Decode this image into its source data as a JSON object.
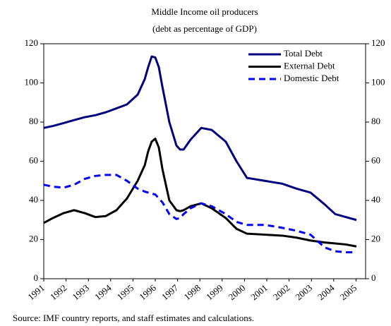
{
  "chart_data": {
    "type": "line",
    "title": "Middle Income oil producers",
    "subtitle": "(debt as percentage of GDP)",
    "source": "Source: IMF country reports, and staff estimates and calculations.",
    "x": [
      1991,
      1991.41,
      1991.89,
      1992.36,
      1992.84,
      1993.31,
      1993.78,
      1994.26,
      1994.73,
      1995.21,
      1995.53,
      1995.68,
      1995.84,
      1996.0,
      1996.16,
      1996.32,
      1996.63,
      1996.95,
      1997.11,
      1997.27,
      1997.58,
      1998.06,
      1998.53,
      1999.16,
      1999.64,
      2000.11,
      2000.91,
      2001.7,
      2002.33,
      2002.96,
      2003.59,
      2004.07,
      2004.54,
      2005.02
    ],
    "series": [
      {
        "name": "Total Debt",
        "color": "#000080",
        "dash": false,
        "values": [
          77,
          78,
          79.5,
          81,
          82.5,
          83.5,
          85,
          87,
          89,
          94,
          102,
          108,
          113.5,
          113,
          108,
          98,
          80,
          68,
          66,
          66,
          71,
          77,
          76,
          70,
          60,
          51.5,
          50,
          48.5,
          46,
          44,
          38,
          33,
          31.5,
          30
        ]
      },
      {
        "name": "External Debt",
        "color": "#000000",
        "dash": false,
        "values": [
          28.5,
          31,
          33.5,
          35,
          33.5,
          31.5,
          32,
          35,
          41,
          50,
          58,
          65,
          70,
          71.5,
          67,
          56,
          40,
          35,
          34.5,
          35,
          37,
          38.5,
          36,
          31,
          25.5,
          23,
          22.5,
          22,
          21,
          19.5,
          18.5,
          18,
          17.5,
          16.5
        ]
      },
      {
        "name": "Domestic Debt",
        "color": "#0000ff",
        "dash": true,
        "values": [
          48,
          47,
          46.5,
          48,
          51,
          52.5,
          53,
          53,
          50,
          46,
          44.5,
          44,
          43.5,
          43,
          41,
          39,
          33,
          30.5,
          31,
          33,
          36,
          38.5,
          37,
          33,
          29,
          27.5,
          27.5,
          26,
          24.5,
          22.5,
          16,
          14,
          13.5,
          13.5
        ]
      }
    ],
    "xlim": [
      1991,
      2005.43
    ],
    "xticks": [
      1991,
      1992,
      1993,
      1994,
      1995,
      1996,
      1997,
      1998,
      1999,
      2000,
      2001,
      2002,
      2003,
      2004,
      2005
    ],
    "ylim": [
      0,
      120
    ],
    "yticks": [
      0,
      20,
      40,
      60,
      80,
      100,
      120
    ],
    "y2lim": [
      0,
      120
    ],
    "y2ticks": [
      0,
      20,
      40,
      60,
      80,
      100,
      120
    ],
    "legend": "upper right",
    "grid": false
  }
}
